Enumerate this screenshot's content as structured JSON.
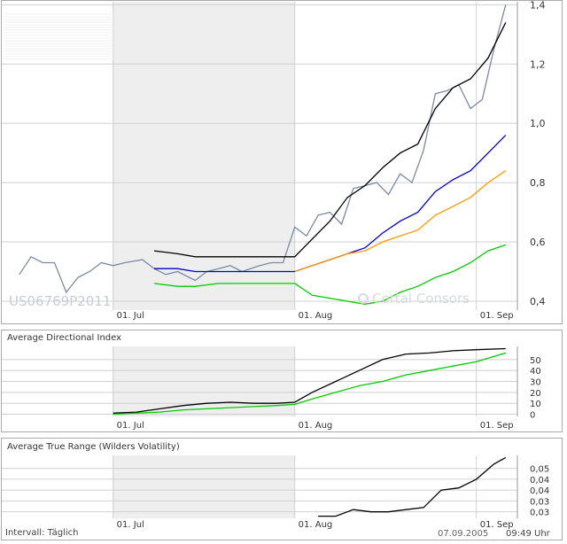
{
  "isin": "US06769P2011",
  "watermark": "Cortal Consors",
  "footer": {
    "interval": "Intervall: Täglich",
    "date": "07.09.2005",
    "time": "09:49 Uhr"
  },
  "x_labels": [
    "01. Jul",
    "01. Aug",
    "01. Sep"
  ],
  "colors": {
    "price": "#7a8aa6",
    "black": "#000000",
    "blue": "#0000cc",
    "orange": "#ff9900",
    "green": "#00cc00",
    "weekend_band": "#eeeeee",
    "grid": "#d0d0d0",
    "frame": "#aaaaaa"
  },
  "chart_data": [
    {
      "type": "line",
      "panel": "price",
      "title": "",
      "xlabel": "",
      "ylabel": "",
      "x_axis": "date",
      "x_ticks": [
        "2005-07-01",
        "2005-08-01",
        "2005-09-01"
      ],
      "ylim": [
        0.37,
        1.41
      ],
      "y_ticks": [
        0.4,
        0.6,
        0.8,
        1.0,
        1.2,
        1.4
      ],
      "y_tick_labels": [
        "0,4",
        "0,6",
        "0,8",
        "1,0",
        "1,2",
        "1,4"
      ],
      "grid": true,
      "shaded_period": [
        "2005-07-01",
        "2005-08-01"
      ],
      "series": [
        {
          "color_key": "price",
          "x": [
            "2005-06-15",
            "2005-06-17",
            "2005-06-19",
            "2005-06-21",
            "2005-06-23",
            "2005-06-25",
            "2005-06-27",
            "2005-06-29",
            "2005-07-01",
            "2005-07-03",
            "2005-07-06",
            "2005-07-08",
            "2005-07-10",
            "2005-07-12",
            "2005-07-15",
            "2005-07-17",
            "2005-07-19",
            "2005-07-21",
            "2005-07-23",
            "2005-07-26",
            "2005-07-28",
            "2005-07-30",
            "2005-08-01",
            "2005-08-03",
            "2005-08-05",
            "2005-08-07",
            "2005-08-09",
            "2005-08-11",
            "2005-08-13",
            "2005-08-15",
            "2005-08-17",
            "2005-08-19",
            "2005-08-21",
            "2005-08-23",
            "2005-08-25",
            "2005-08-27",
            "2005-08-29",
            "2005-08-31",
            "2005-09-02",
            "2005-09-04",
            "2005-09-06"
          ],
          "values": [
            0.49,
            0.55,
            0.53,
            0.53,
            0.43,
            0.48,
            0.5,
            0.53,
            0.52,
            0.53,
            0.54,
            0.51,
            0.49,
            0.5,
            0.47,
            0.5,
            0.51,
            0.52,
            0.5,
            0.52,
            0.53,
            0.53,
            0.65,
            0.62,
            0.69,
            0.7,
            0.66,
            0.78,
            0.79,
            0.8,
            0.76,
            0.83,
            0.8,
            0.91,
            1.1,
            1.11,
            1.13,
            1.05,
            1.08,
            1.25,
            1.4
          ]
        },
        {
          "color_key": "black",
          "x": [
            "2005-07-08",
            "2005-07-12",
            "2005-07-15",
            "2005-07-19",
            "2005-07-22",
            "2005-07-26",
            "2005-07-29",
            "2005-08-01",
            "2005-08-04",
            "2005-08-07",
            "2005-08-10",
            "2005-08-13",
            "2005-08-16",
            "2005-08-19",
            "2005-08-22",
            "2005-08-25",
            "2005-08-28",
            "2005-08-31",
            "2005-09-03",
            "2005-09-06"
          ],
          "values": [
            0.57,
            0.56,
            0.55,
            0.55,
            0.55,
            0.55,
            0.55,
            0.55,
            0.61,
            0.67,
            0.75,
            0.79,
            0.85,
            0.9,
            0.93,
            1.05,
            1.12,
            1.15,
            1.22,
            1.34
          ]
        },
        {
          "color_key": "blue",
          "x": [
            "2005-07-08",
            "2005-07-12",
            "2005-07-15",
            "2005-07-19",
            "2005-07-22",
            "2005-07-26",
            "2005-07-29",
            "2005-08-01",
            "2005-08-04",
            "2005-08-07",
            "2005-08-10",
            "2005-08-13",
            "2005-08-16",
            "2005-08-19",
            "2005-08-22",
            "2005-08-25",
            "2005-08-28",
            "2005-08-31",
            "2005-09-03",
            "2005-09-06"
          ],
          "values": [
            0.51,
            0.51,
            0.5,
            0.5,
            0.5,
            0.5,
            0.5,
            0.5,
            0.52,
            0.54,
            0.56,
            0.58,
            0.63,
            0.67,
            0.7,
            0.77,
            0.81,
            0.84,
            0.9,
            0.96
          ]
        },
        {
          "color_key": "orange",
          "x": [
            "2005-08-01",
            "2005-08-04",
            "2005-08-07",
            "2005-08-10",
            "2005-08-13",
            "2005-08-16",
            "2005-08-19",
            "2005-08-22",
            "2005-08-25",
            "2005-08-28",
            "2005-08-31",
            "2005-09-03",
            "2005-09-06"
          ],
          "values": [
            0.5,
            0.52,
            0.54,
            0.56,
            0.57,
            0.6,
            0.62,
            0.64,
            0.69,
            0.72,
            0.75,
            0.8,
            0.84
          ]
        },
        {
          "color_key": "green",
          "x": [
            "2005-07-08",
            "2005-07-12",
            "2005-07-15",
            "2005-07-19",
            "2005-07-22",
            "2005-07-26",
            "2005-07-29",
            "2005-08-01",
            "2005-08-04",
            "2005-08-07",
            "2005-08-10",
            "2005-08-13",
            "2005-08-16",
            "2005-08-19",
            "2005-08-22",
            "2005-08-25",
            "2005-08-28",
            "2005-08-31",
            "2005-09-03",
            "2005-09-06"
          ],
          "values": [
            0.46,
            0.45,
            0.45,
            0.46,
            0.46,
            0.46,
            0.46,
            0.46,
            0.42,
            0.41,
            0.4,
            0.39,
            0.4,
            0.43,
            0.45,
            0.48,
            0.5,
            0.53,
            0.57,
            0.59
          ]
        }
      ]
    },
    {
      "type": "line",
      "panel": "adx",
      "title": "Average Directional Index",
      "xlabel": "",
      "ylabel": "",
      "x_axis": "date",
      "x_ticks": [
        "2005-07-01",
        "2005-08-01",
        "2005-09-01"
      ],
      "ylim": [
        -2,
        62
      ],
      "y_ticks": [
        0,
        10,
        20,
        30,
        40,
        50
      ],
      "y_tick_labels": [
        "0",
        "10",
        "20",
        "30",
        "40",
        "50"
      ],
      "grid": true,
      "shaded_period": [
        "2005-07-01",
        "2005-08-01"
      ],
      "series": [
        {
          "color_key": "black",
          "x": [
            "2005-07-01",
            "2005-07-05",
            "2005-07-09",
            "2005-07-13",
            "2005-07-17",
            "2005-07-21",
            "2005-07-25",
            "2005-07-29",
            "2005-08-01",
            "2005-08-04",
            "2005-08-08",
            "2005-08-12",
            "2005-08-16",
            "2005-08-20",
            "2005-08-24",
            "2005-08-28",
            "2005-09-01",
            "2005-09-06"
          ],
          "values": [
            1,
            2,
            5,
            8,
            10,
            11,
            10,
            10,
            11,
            20,
            30,
            40,
            50,
            55,
            56,
            58,
            59,
            60
          ]
        },
        {
          "color_key": "green",
          "x": [
            "2005-07-01",
            "2005-07-05",
            "2005-07-09",
            "2005-07-13",
            "2005-07-17",
            "2005-07-21",
            "2005-07-25",
            "2005-07-29",
            "2005-08-01",
            "2005-08-04",
            "2005-08-08",
            "2005-08-12",
            "2005-08-16",
            "2005-08-20",
            "2005-08-24",
            "2005-08-28",
            "2005-09-01",
            "2005-09-06"
          ],
          "values": [
            0,
            1,
            2,
            4,
            5,
            6,
            7,
            8,
            9,
            14,
            20,
            26,
            30,
            36,
            40,
            44,
            48,
            56
          ]
        }
      ]
    },
    {
      "type": "line",
      "panel": "atr",
      "title": "Average True Range (Wilders Volatility)",
      "xlabel": "",
      "ylabel": "",
      "x_axis": "date",
      "x_ticks": [
        "2005-07-01",
        "2005-08-01",
        "2005-09-01"
      ],
      "ylim": [
        0.027,
        0.056
      ],
      "y_ticks": [
        0.03,
        0.035,
        0.04,
        0.045,
        0.05
      ],
      "y_tick_labels": [
        "0,03",
        "0,03",
        "0,04",
        "0,04",
        "0,05"
      ],
      "grid": true,
      "shaded_period": [
        "2005-07-01",
        "2005-08-01"
      ],
      "series": [
        {
          "color_key": "black",
          "x": [
            "2005-08-05",
            "2005-08-08",
            "2005-08-11",
            "2005-08-14",
            "2005-08-17",
            "2005-08-20",
            "2005-08-23",
            "2005-08-26",
            "2005-08-29",
            "2005-09-01",
            "2005-09-04",
            "2005-09-06"
          ],
          "values": [
            0.028,
            0.028,
            0.031,
            0.03,
            0.03,
            0.031,
            0.032,
            0.04,
            0.041,
            0.045,
            0.052,
            0.055
          ]
        }
      ]
    }
  ]
}
